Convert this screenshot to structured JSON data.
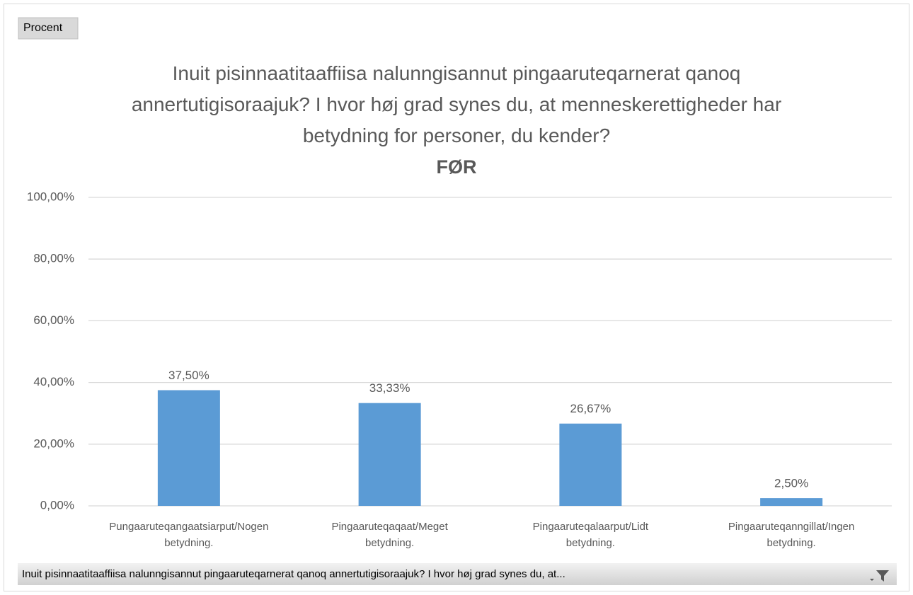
{
  "field_button": "Procent",
  "axis_field": "Inuit pisinnaatitaaffiisa nalunngisannut pingaaruteqarnerat qanoq annertutigisoraajuk? I hvor høj grad synes du, at...",
  "chart_data": {
    "type": "bar",
    "title": "Inuit pisinnaatitaaffiisa nalunngisannut pingaaruteqarnerat qanoq annertutigisoraajuk? I hvor høj grad synes du, at menneskerettigheder har betydning for personer, du kender?",
    "subtitle": "FØR",
    "categories": [
      "Pungaaruteqangaatsiarput/Nogen betydning.",
      "Pingaaruteqaqaat/Meget betydning.",
      "Pingaaruteqalaarput/Lidt betydning.",
      "Pingaaruteqanngillat/Ingen betydning."
    ],
    "values": [
      37.5,
      33.33,
      26.67,
      2.5
    ],
    "value_labels": [
      "37,50%",
      "33,33%",
      "26,67%",
      "2,50%"
    ],
    "color": "#5b9bd5",
    "ylim": [
      0,
      100
    ],
    "yticks": [
      {
        "value": 0,
        "label": "0,00%"
      },
      {
        "value": 20,
        "label": "20,00%"
      },
      {
        "value": 40,
        "label": "40,00%"
      },
      {
        "value": 60,
        "label": "60,00%"
      },
      {
        "value": 80,
        "label": "80,00%"
      },
      {
        "value": 100,
        "label": "100,00%"
      }
    ],
    "grid": true
  }
}
